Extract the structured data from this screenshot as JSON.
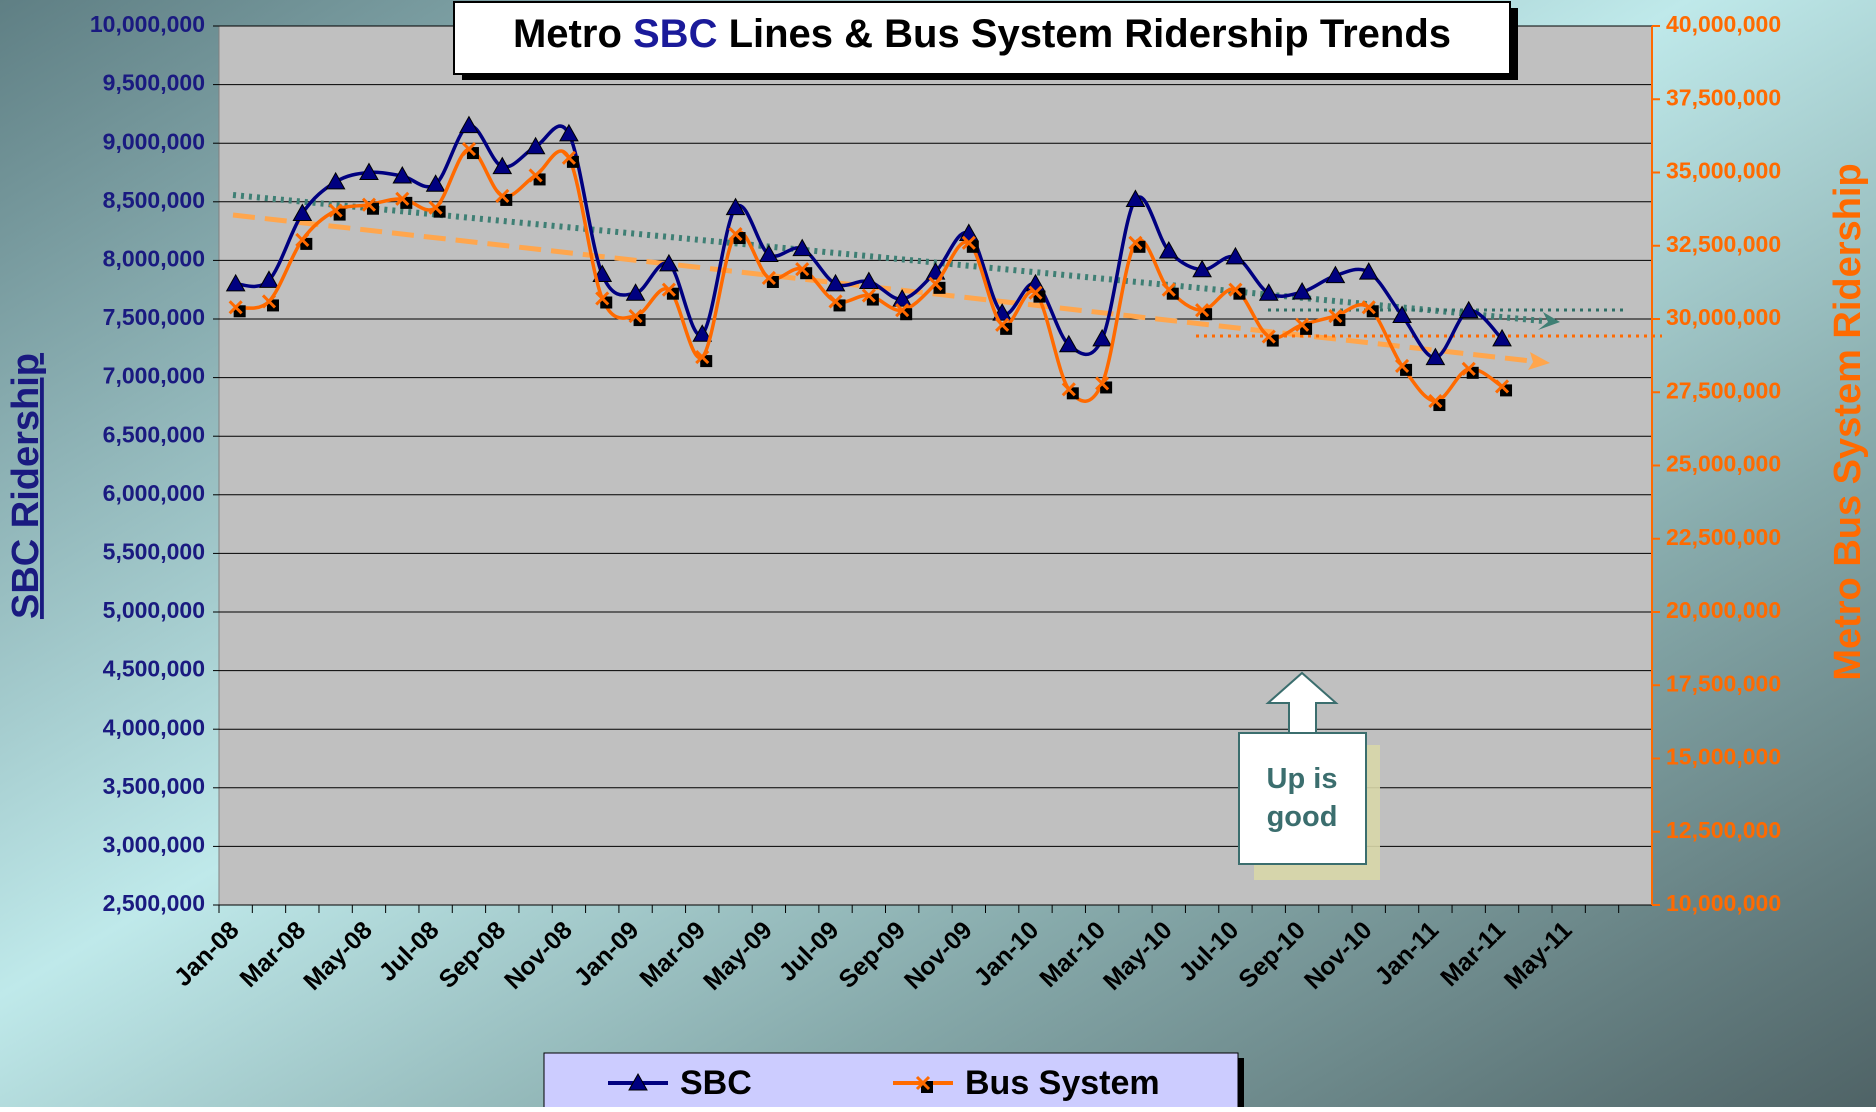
{
  "chart_data": {
    "type": "line",
    "title": [
      "Metro",
      "SBC",
      "Lines & Bus System Ridership Trends"
    ],
    "ylabel": "SBC Ridership",
    "y2label": "Metro Bus System Ridership",
    "annotation": "Up is good",
    "categories": [
      "Jan-08",
      null,
      "Mar-08",
      null,
      "May-08",
      null,
      "Jul-08",
      null,
      "Sep-08",
      null,
      "Nov-08",
      null,
      "Jan-09",
      null,
      "Mar-09",
      null,
      "May-09",
      null,
      "Jul-09",
      null,
      "Sep-09",
      null,
      "Nov-09",
      null,
      "Jan-10",
      null,
      "Mar-10",
      null,
      "May-10",
      null,
      "Jul-10",
      null,
      "Sep-10",
      null,
      "Nov-10",
      null,
      "Jan-11",
      null,
      "Mar-11",
      null,
      "May-11",
      null,
      null
    ],
    "series": [
      {
        "name": "SBC",
        "color": "#000080",
        "marker": "triangle",
        "values": [
          7800000,
          7830000,
          8400000,
          8670000,
          8750000,
          8720000,
          8650000,
          9150000,
          8800000,
          8970000,
          9080000,
          7880000,
          7720000,
          7970000,
          7370000,
          8450000,
          8050000,
          8100000,
          7800000,
          7820000,
          7670000,
          7900000,
          8230000,
          7550000,
          7800000,
          7280000,
          7330000,
          8520000,
          8080000,
          7920000,
          8030000,
          7720000,
          7730000,
          7870000,
          7900000,
          7530000,
          7170000,
          7570000,
          7330000,
          null,
          null,
          null,
          null
        ]
      },
      {
        "name": "Bus System",
        "color": "#ff6a00",
        "marker": "square",
        "axis": "y2",
        "values": [
          30400000,
          30600000,
          32700000,
          33700000,
          33900000,
          34100000,
          33800000,
          35800000,
          34200000,
          34900000,
          35500000,
          30700000,
          30100000,
          31000000,
          28700000,
          32900000,
          31400000,
          31700000,
          30600000,
          30800000,
          30300000,
          31200000,
          32600000,
          29800000,
          30900000,
          27600000,
          27800000,
          32600000,
          31000000,
          30300000,
          31000000,
          29400000,
          29800000,
          30100000,
          30400000,
          28400000,
          27200000,
          28300000,
          27700000,
          null,
          null,
          null,
          null
        ]
      }
    ],
    "ylim": [
      2500000,
      10000000
    ],
    "yticks": [
      {
        "value": 2500000,
        "label": "2,500,000"
      },
      {
        "value": 3000000,
        "label": "3,000,000"
      },
      {
        "value": 3500000,
        "label": "3,500,000"
      },
      {
        "value": 4000000,
        "label": "4,000,000"
      },
      {
        "value": 4500000,
        "label": "4,500,000"
      },
      {
        "value": 5000000,
        "label": "5,000,000"
      },
      {
        "value": 5500000,
        "label": "5,500,000"
      },
      {
        "value": 6000000,
        "label": "6,000,000"
      },
      {
        "value": 6500000,
        "label": "6,500,000"
      },
      {
        "value": 7000000,
        "label": "7,000,000"
      },
      {
        "value": 7500000,
        "label": "7,500,000"
      },
      {
        "value": 8000000,
        "label": "8,000,000"
      },
      {
        "value": 8500000,
        "label": "8,500,000"
      },
      {
        "value": 9000000,
        "label": "9,000,000"
      },
      {
        "value": 9500000,
        "label": "9,500,000"
      },
      {
        "value": 10000000,
        "label": "10,000,000"
      }
    ],
    "y2lim": [
      10000000,
      40000000
    ],
    "y2ticks": [
      {
        "value": 10000000,
        "label": "10,000,000"
      },
      {
        "value": 12500000,
        "label": "12,500,000"
      },
      {
        "value": 15000000,
        "label": "15,000,000"
      },
      {
        "value": 17500000,
        "label": "17,500,000"
      },
      {
        "value": 20000000,
        "label": "20,000,000"
      },
      {
        "value": 22500000,
        "label": "22,500,000"
      },
      {
        "value": 25000000,
        "label": "25,000,000"
      },
      {
        "value": 27500000,
        "label": "27,500,000"
      },
      {
        "value": 30000000,
        "label": "30,000,000"
      },
      {
        "value": 32500000,
        "label": "32,500,000"
      },
      {
        "value": 35000000,
        "label": "35,000,000"
      },
      {
        "value": 37500000,
        "label": "37,500,000"
      },
      {
        "value": 40000000,
        "label": "40,000,000"
      }
    ],
    "grid": true
  }
}
